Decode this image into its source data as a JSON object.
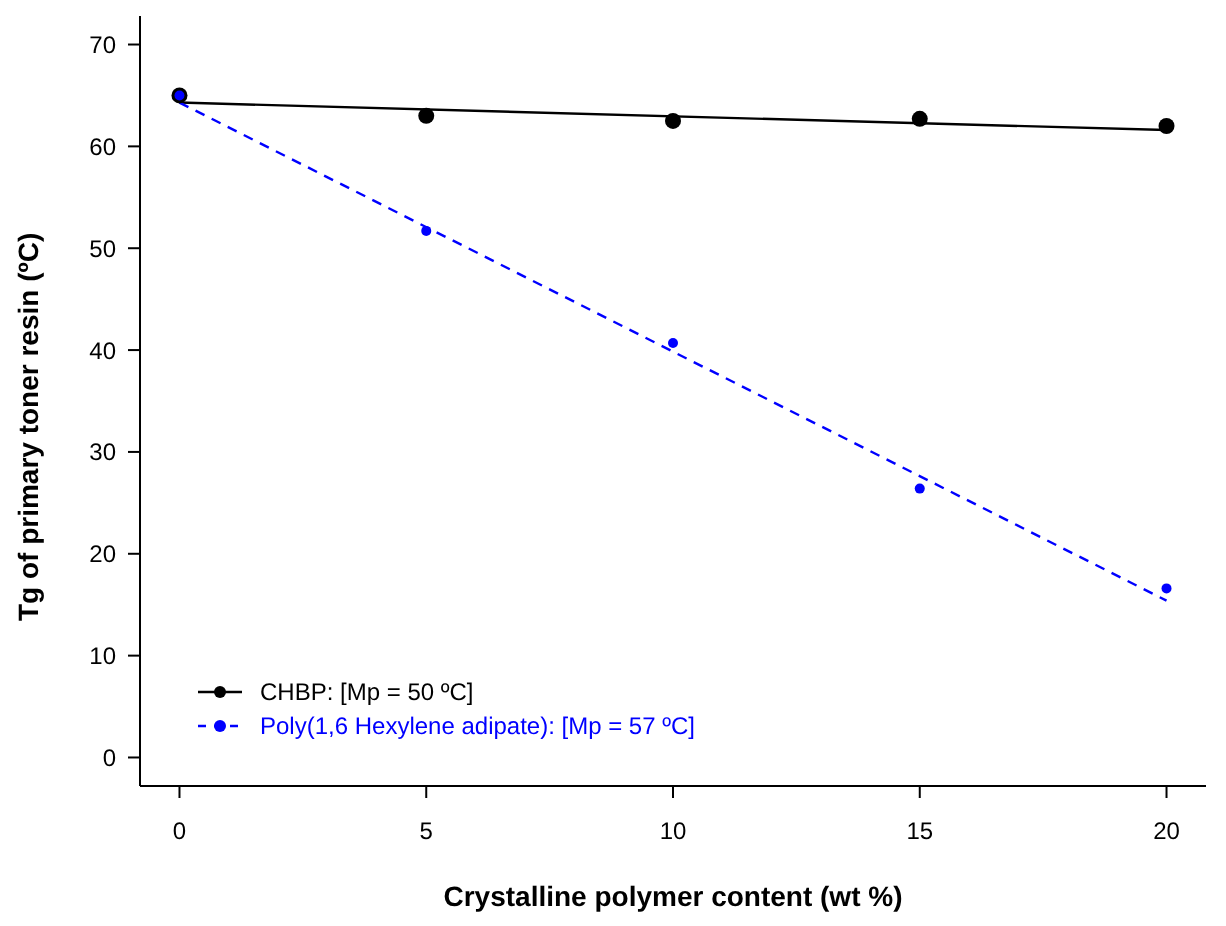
{
  "chart_data": {
    "type": "scatter",
    "xlabel": "Crystalline polymer content (wt %)",
    "ylabel": "Tg of primary toner resin (ºC)",
    "xlim": [
      -0.8,
      20.8
    ],
    "ylim": [
      -2.8,
      72.8
    ],
    "xticks": [
      0,
      5,
      10,
      15,
      20
    ],
    "yticks": [
      0,
      10,
      20,
      30,
      40,
      50,
      60,
      70
    ],
    "legend": "bottom left",
    "series": [
      {
        "name": "CHBP: [Mp = 50 ºC]",
        "color": "#000000",
        "x": [
          0,
          5,
          10,
          15,
          20
        ],
        "values": [
          65,
          63,
          62.5,
          62.7,
          62
        ],
        "line_style": "solid",
        "marker": "circle"
      },
      {
        "name": "Poly(1,6 Hexylene adipate): [Mp = 57 ºC]",
        "color": "#0000ff",
        "x": [
          0,
          5,
          10,
          15,
          20
        ],
        "values": [
          65,
          51.7,
          40.7,
          26.4,
          16.6
        ],
        "line_style": "dashed",
        "marker": "circle"
      },
      {
        "type": "line",
        "color": "#000000",
        "x": [
          0,
          20
        ],
        "values": [
          64.3,
          61.6
        ],
        "line_style": "solid"
      },
      {
        "type": "line",
        "color": "#0000ff",
        "x": [
          0,
          20
        ],
        "values": [
          64.3,
          15.4
        ],
        "line_style": "dashed"
      }
    ]
  }
}
